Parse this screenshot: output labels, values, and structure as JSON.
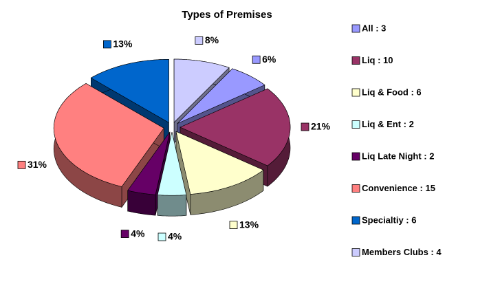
{
  "chart_data": {
    "type": "pie3d",
    "title": "Types of Premises",
    "categories": [
      "All",
      "Liq",
      "Liq & Food",
      "Liq & Ent",
      "Liq Late Night",
      "Convenience",
      "Specialtiy",
      "Members Clubs"
    ],
    "values": [
      3,
      10,
      6,
      2,
      2,
      15,
      6,
      4
    ],
    "legend_labels": [
      "All : 3",
      "Liq : 10",
      "Liq & Food : 6",
      "Liq & Ent : 2",
      "Liq Late Night : 2",
      "Convenience : 15",
      "Specialtiy : 6",
      "Members Clubs : 4"
    ],
    "colors": [
      "#9999ff",
      "#993366",
      "#ffffcc",
      "#ccffff",
      "#660066",
      "#ff8080",
      "#0066cc",
      "#ccccff"
    ],
    "data_labels": {
      "values": [
        6,
        21,
        13,
        4,
        4,
        31,
        13,
        8
      ],
      "value_labels": [
        "6%",
        "21%",
        "13%",
        "4%",
        "4%",
        "31%",
        "13%",
        "8%"
      ]
    },
    "legend": "right"
  }
}
